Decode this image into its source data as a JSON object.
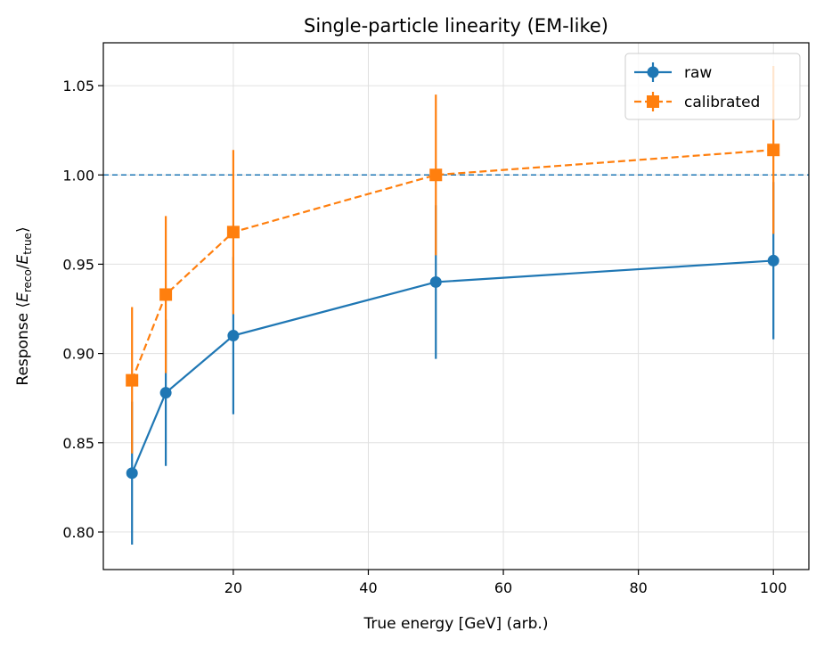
{
  "chart_data": {
    "type": "line",
    "title": "Single-particle linearity (EM-like)",
    "xlabel": "True energy [GeV] (arb.)",
    "ylabel": {
      "prefix": "Response ⟨",
      "e1": "E",
      "sub1": "reco",
      "slash": "/",
      "e2": "E",
      "sub2": "true",
      "suffix": "⟩"
    },
    "xlim": [
      0.75,
      105.25
    ],
    "ylim": [
      0.779,
      1.074
    ],
    "xticks": [
      20,
      40,
      60,
      80,
      100
    ],
    "xtick_labels": [
      "20",
      "40",
      "60",
      "80",
      "100"
    ],
    "yticks": [
      0.8,
      0.85,
      0.9,
      0.95,
      1.0,
      1.05
    ],
    "ytick_labels": [
      "0.80",
      "0.85",
      "0.90",
      "0.95",
      "1.00",
      "1.05"
    ],
    "grid": true,
    "reference_line": 1.0,
    "legend_position": "top-right",
    "x": [
      5,
      10,
      20,
      50,
      100
    ],
    "series": [
      {
        "name": "raw",
        "values": [
          0.833,
          0.878,
          0.91,
          0.94,
          0.952
        ],
        "errors": [
          0.04,
          0.041,
          0.044,
          0.043,
          0.044
        ],
        "color": "#1f77b4",
        "marker": "circle",
        "linestyle": "solid"
      },
      {
        "name": "calibrated",
        "values": [
          0.885,
          0.933,
          0.968,
          1.0,
          1.014
        ],
        "errors": [
          0.041,
          0.044,
          0.046,
          0.045,
          0.047
        ],
        "color": "#ff7f0e",
        "marker": "square",
        "linestyle": "dashed"
      }
    ]
  }
}
